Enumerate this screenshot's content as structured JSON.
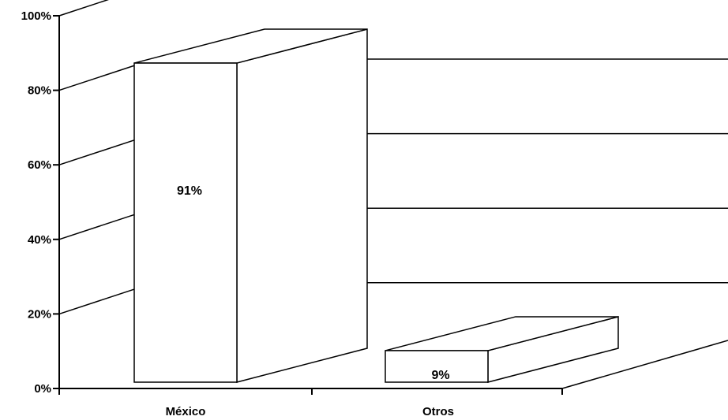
{
  "chart_data": {
    "type": "bar",
    "style": "3d",
    "categories": [
      "México",
      "Otros"
    ],
    "values": [
      91,
      9
    ],
    "data_labels": [
      "91%",
      "9%"
    ],
    "y_ticks": [
      "0%",
      "20%",
      "40%",
      "60%",
      "80%",
      "100%"
    ],
    "ylim": [
      0,
      100
    ],
    "title": "",
    "xlabel": "",
    "ylabel": "",
    "grid": true,
    "colors": {
      "bar_fill": "#ffffff",
      "stroke": "#000000",
      "grid": "#000000"
    }
  }
}
